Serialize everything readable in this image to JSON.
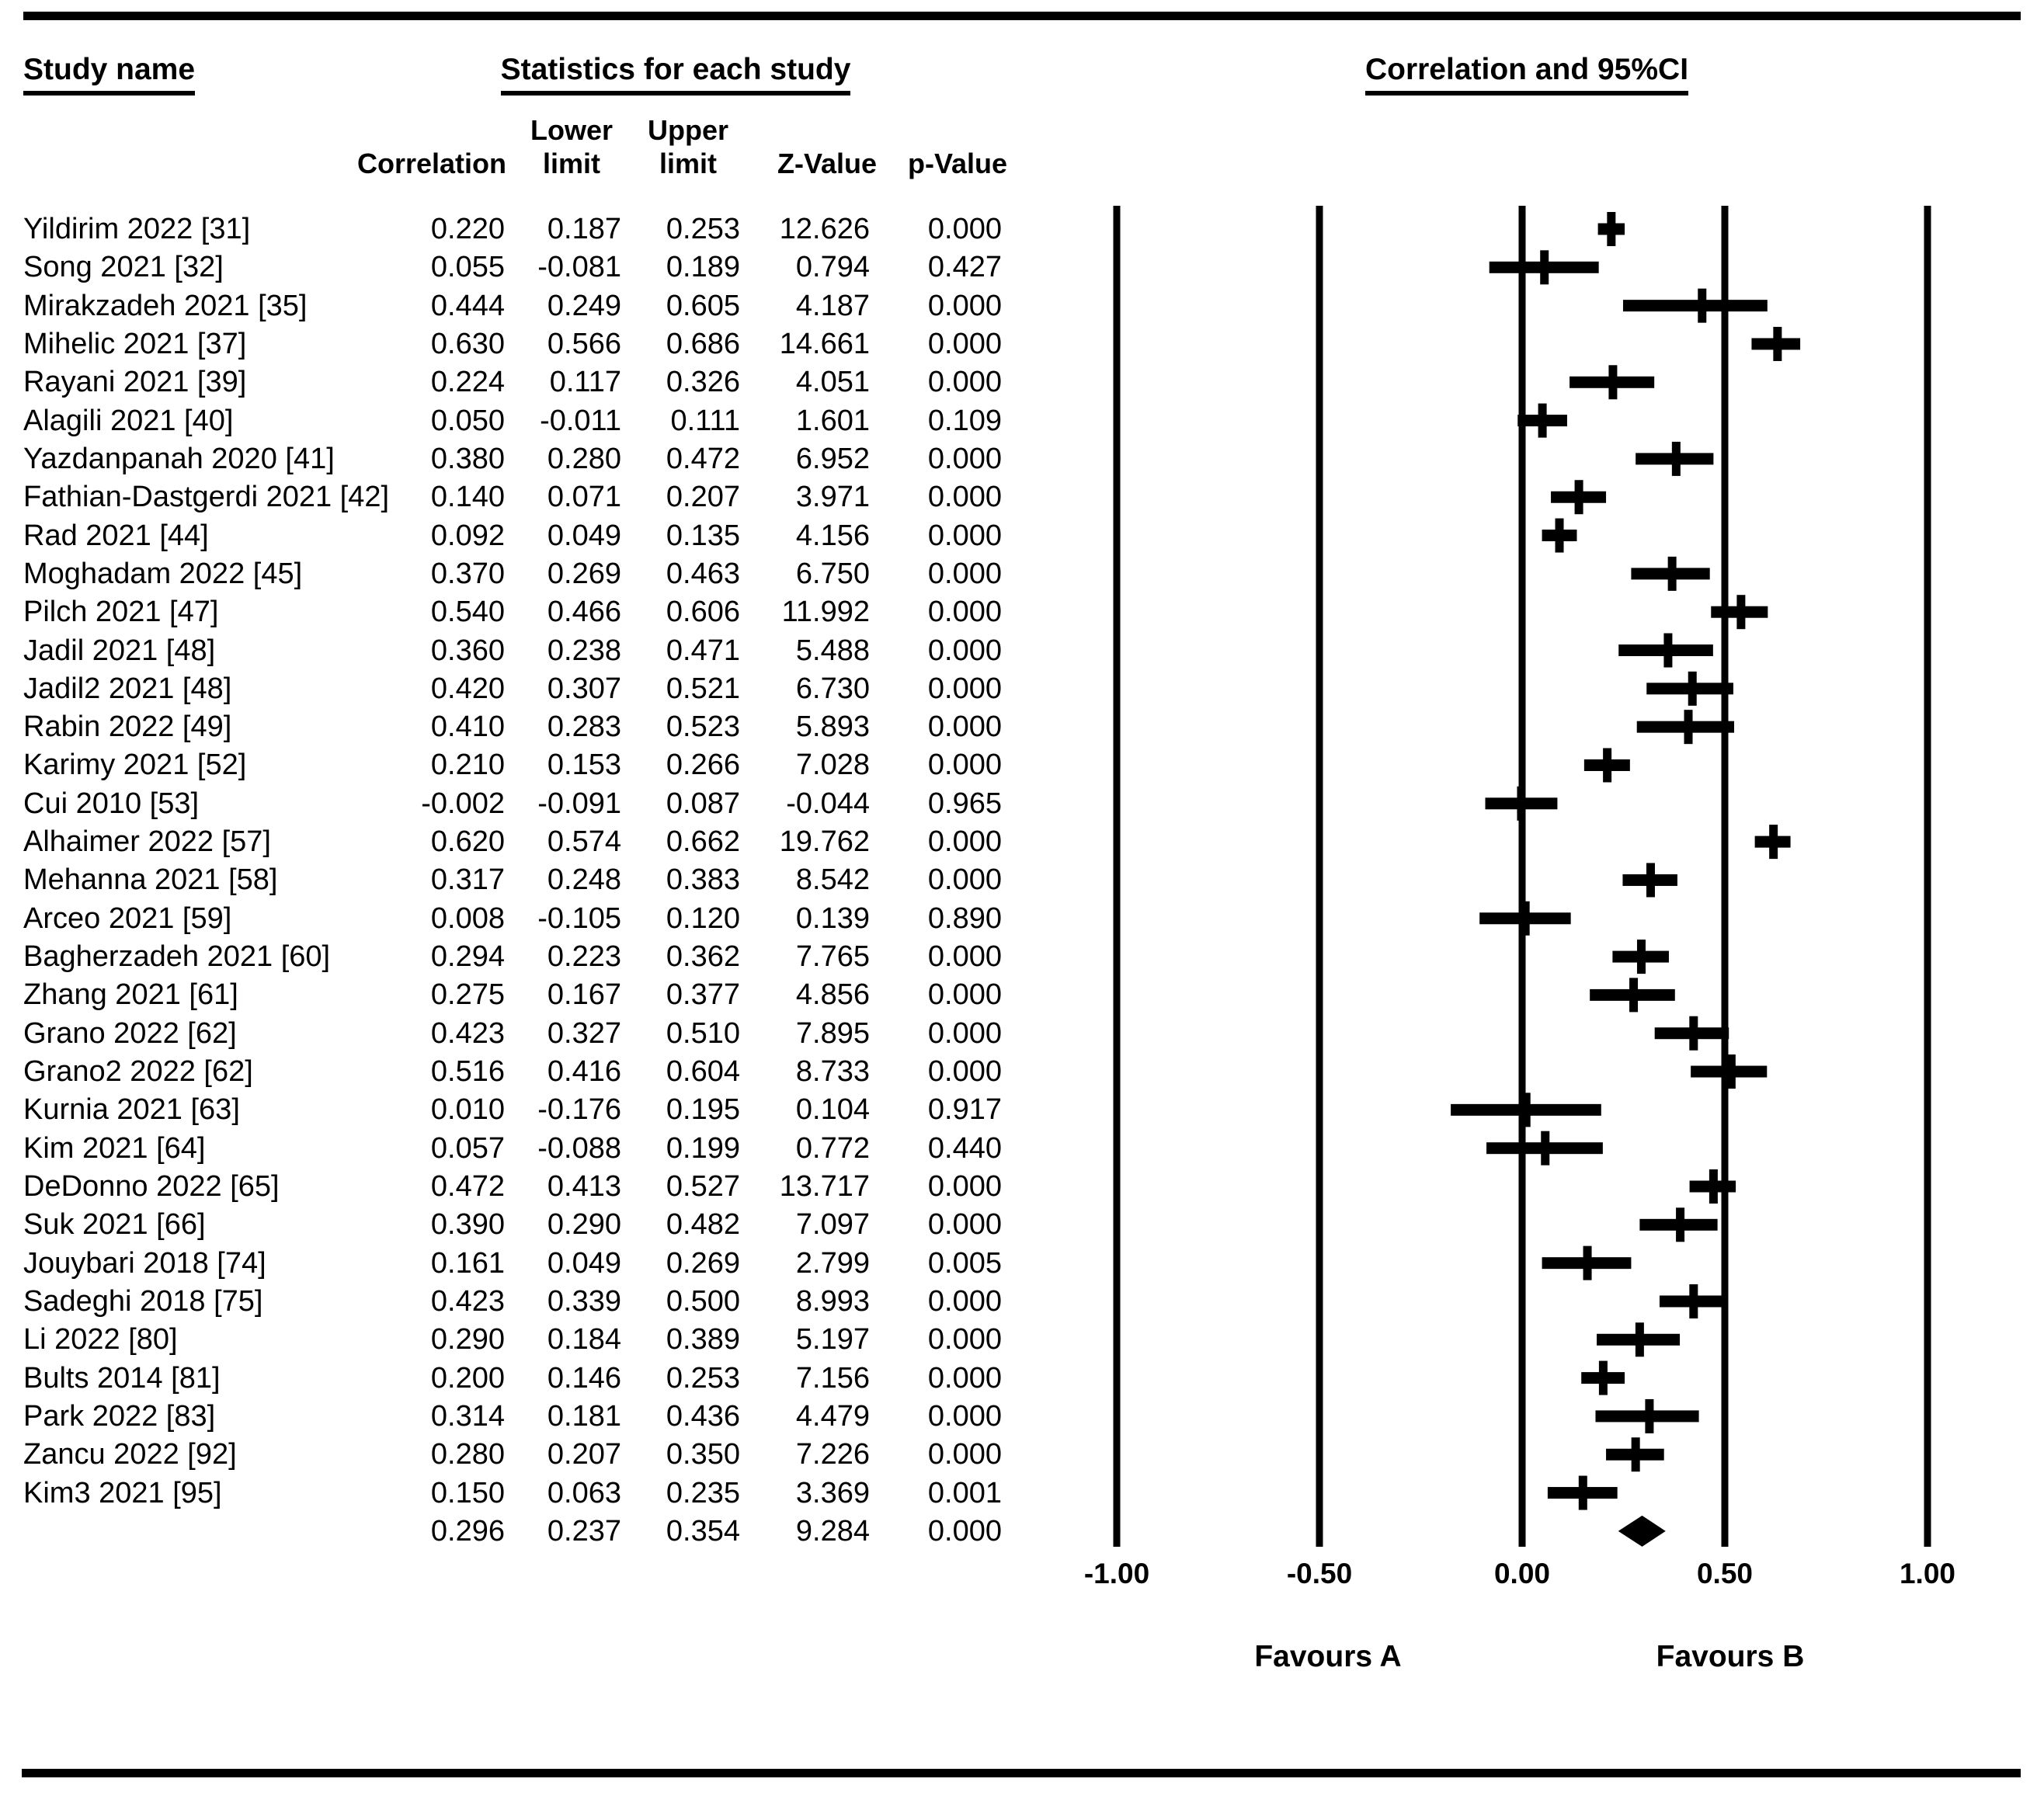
{
  "headers": {
    "study_name": "Study name",
    "statistics": "Statistics for each study",
    "correlation_ci": "Correlation and 95%CI"
  },
  "table": {
    "columns": [
      {
        "id": "correlation",
        "lines": [
          "Correlation"
        ]
      },
      {
        "id": "lower",
        "lines": [
          "Lower",
          "limit"
        ]
      },
      {
        "id": "upper",
        "lines": [
          "Upper",
          "limit"
        ]
      },
      {
        "id": "z",
        "lines": [
          "Z-Value"
        ]
      },
      {
        "id": "p",
        "lines": [
          "p-Value"
        ]
      }
    ]
  },
  "footer": {
    "favours_a": "Favours A",
    "favours_b": "Favours B"
  },
  "axis": {
    "ticks": [
      {
        "value": -1.0,
        "label": "-1.00"
      },
      {
        "value": -0.5,
        "label": "-0.50"
      },
      {
        "value": 0.0,
        "label": "0.00"
      },
      {
        "value": 0.5,
        "label": "0.50"
      },
      {
        "value": 1.0,
        "label": "1.00"
      }
    ]
  },
  "chart_data": {
    "type": "forest",
    "title": "Correlation and 95%CI",
    "effect_measure": "correlation",
    "xlim": [
      -1.0,
      1.0
    ],
    "x_ticks": [
      -1.0,
      -0.5,
      0.0,
      0.5,
      1.0
    ],
    "grid": true,
    "legend_position": "none",
    "columns": [
      "Correlation",
      "Lower limit",
      "Upper limit",
      "Z-Value",
      "p-Value"
    ],
    "favours_left": "Favours A",
    "favours_right": "Favours B",
    "studies": [
      {
        "name": "Yildirim 2022 [31]",
        "correlation": 0.22,
        "lower": 0.187,
        "upper": 0.253,
        "z": 12.626,
        "p": 0.0
      },
      {
        "name": "Song 2021 [32]",
        "correlation": 0.055,
        "lower": -0.081,
        "upper": 0.189,
        "z": 0.794,
        "p": 0.427
      },
      {
        "name": "Mirakzadeh 2021 [35]",
        "correlation": 0.444,
        "lower": 0.249,
        "upper": 0.605,
        "z": 4.187,
        "p": 0.0
      },
      {
        "name": "Mihelic 2021 [37]",
        "correlation": 0.63,
        "lower": 0.566,
        "upper": 0.686,
        "z": 14.661,
        "p": 0.0
      },
      {
        "name": "Rayani 2021 [39]",
        "correlation": 0.224,
        "lower": 0.117,
        "upper": 0.326,
        "z": 4.051,
        "p": 0.0
      },
      {
        "name": "Alagili 2021 [40]",
        "correlation": 0.05,
        "lower": -0.011,
        "upper": 0.111,
        "z": 1.601,
        "p": 0.109
      },
      {
        "name": "Yazdanpanah 2020 [41]",
        "correlation": 0.38,
        "lower": 0.28,
        "upper": 0.472,
        "z": 6.952,
        "p": 0.0
      },
      {
        "name": "Fathian-Dastgerdi 2021 [42]",
        "correlation": 0.14,
        "lower": 0.071,
        "upper": 0.207,
        "z": 3.971,
        "p": 0.0
      },
      {
        "name": "Rad 2021 [44]",
        "correlation": 0.092,
        "lower": 0.049,
        "upper": 0.135,
        "z": 4.156,
        "p": 0.0
      },
      {
        "name": "Moghadam 2022 [45]",
        "correlation": 0.37,
        "lower": 0.269,
        "upper": 0.463,
        "z": 6.75,
        "p": 0.0
      },
      {
        "name": "Pilch 2021 [47]",
        "correlation": 0.54,
        "lower": 0.466,
        "upper": 0.606,
        "z": 11.992,
        "p": 0.0
      },
      {
        "name": "Jadil 2021 [48]",
        "correlation": 0.36,
        "lower": 0.238,
        "upper": 0.471,
        "z": 5.488,
        "p": 0.0
      },
      {
        "name": "Jadil2 2021 [48]",
        "correlation": 0.42,
        "lower": 0.307,
        "upper": 0.521,
        "z": 6.73,
        "p": 0.0
      },
      {
        "name": "Rabin 2022 [49]",
        "correlation": 0.41,
        "lower": 0.283,
        "upper": 0.523,
        "z": 5.893,
        "p": 0.0
      },
      {
        "name": "Karimy 2021 [52]",
        "correlation": 0.21,
        "lower": 0.153,
        "upper": 0.266,
        "z": 7.028,
        "p": 0.0
      },
      {
        "name": "Cui 2010 [53]",
        "correlation": -0.002,
        "lower": -0.091,
        "upper": 0.087,
        "z": -0.044,
        "p": 0.965
      },
      {
        "name": "Alhaimer 2022 [57]",
        "correlation": 0.62,
        "lower": 0.574,
        "upper": 0.662,
        "z": 19.762,
        "p": 0.0
      },
      {
        "name": "Mehanna 2021 [58]",
        "correlation": 0.317,
        "lower": 0.248,
        "upper": 0.383,
        "z": 8.542,
        "p": 0.0
      },
      {
        "name": "Arceo 2021 [59]",
        "correlation": 0.008,
        "lower": -0.105,
        "upper": 0.12,
        "z": 0.139,
        "p": 0.89
      },
      {
        "name": "Bagherzadeh 2021 [60]",
        "correlation": 0.294,
        "lower": 0.223,
        "upper": 0.362,
        "z": 7.765,
        "p": 0.0
      },
      {
        "name": "Zhang 2021 [61]",
        "correlation": 0.275,
        "lower": 0.167,
        "upper": 0.377,
        "z": 4.856,
        "p": 0.0
      },
      {
        "name": "Grano 2022 [62]",
        "correlation": 0.423,
        "lower": 0.327,
        "upper": 0.51,
        "z": 7.895,
        "p": 0.0
      },
      {
        "name": "Grano2 2022 [62]",
        "correlation": 0.516,
        "lower": 0.416,
        "upper": 0.604,
        "z": 8.733,
        "p": 0.0
      },
      {
        "name": "Kurnia 2021 [63]",
        "correlation": 0.01,
        "lower": -0.176,
        "upper": 0.195,
        "z": 0.104,
        "p": 0.917
      },
      {
        "name": "Kim 2021 [64]",
        "correlation": 0.057,
        "lower": -0.088,
        "upper": 0.199,
        "z": 0.772,
        "p": 0.44
      },
      {
        "name": "DeDonno 2022 [65]",
        "correlation": 0.472,
        "lower": 0.413,
        "upper": 0.527,
        "z": 13.717,
        "p": 0.0
      },
      {
        "name": "Suk 2021 [66]",
        "correlation": 0.39,
        "lower": 0.29,
        "upper": 0.482,
        "z": 7.097,
        "p": 0.0
      },
      {
        "name": "Jouybari 2018 [74]",
        "correlation": 0.161,
        "lower": 0.049,
        "upper": 0.269,
        "z": 2.799,
        "p": 0.005
      },
      {
        "name": "Sadeghi 2018 [75]",
        "correlation": 0.423,
        "lower": 0.339,
        "upper": 0.5,
        "z": 8.993,
        "p": 0.0
      },
      {
        "name": "Li 2022 [80]",
        "correlation": 0.29,
        "lower": 0.184,
        "upper": 0.389,
        "z": 5.197,
        "p": 0.0
      },
      {
        "name": "Bults 2014 [81]",
        "correlation": 0.2,
        "lower": 0.146,
        "upper": 0.253,
        "z": 7.156,
        "p": 0.0
      },
      {
        "name": "Park 2022 [83]",
        "correlation": 0.314,
        "lower": 0.181,
        "upper": 0.436,
        "z": 4.479,
        "p": 0.0
      },
      {
        "name": "Zancu 2022 [92]",
        "correlation": 0.28,
        "lower": 0.207,
        "upper": 0.35,
        "z": 7.226,
        "p": 0.0
      },
      {
        "name": "Kim3 2021 [95]",
        "correlation": 0.15,
        "lower": 0.063,
        "upper": 0.235,
        "z": 3.369,
        "p": 0.001
      }
    ],
    "overall": {
      "name": "",
      "marker": "diamond",
      "correlation": 0.296,
      "lower": 0.237,
      "upper": 0.354,
      "z": 9.284,
      "p": 0.0
    }
  }
}
